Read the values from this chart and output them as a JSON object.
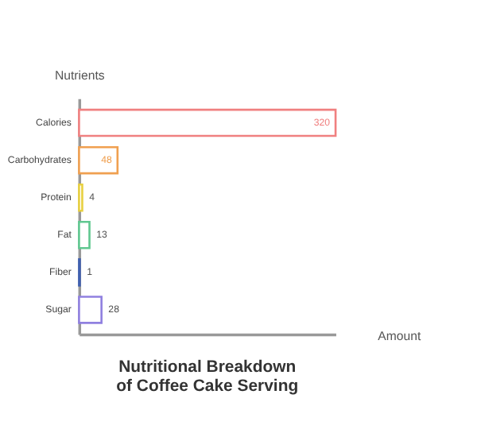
{
  "chart_data": {
    "type": "bar",
    "orientation": "horizontal",
    "title": "Nutritional Breakdown of Coffee Cake Serving",
    "xlabel": "Amount",
    "ylabel": "Nutrients",
    "categories": [
      "Calories",
      "Carbohydrates",
      "Protein",
      "Fat",
      "Fiber",
      "Sugar"
    ],
    "values": [
      320,
      48,
      4,
      13,
      1,
      28
    ],
    "colors": [
      "#f08080",
      "#f0a050",
      "#e8d040",
      "#60c890",
      "#4060b0",
      "#9080e0"
    ],
    "data_labels": true,
    "tick_labels": "y"
  }
}
